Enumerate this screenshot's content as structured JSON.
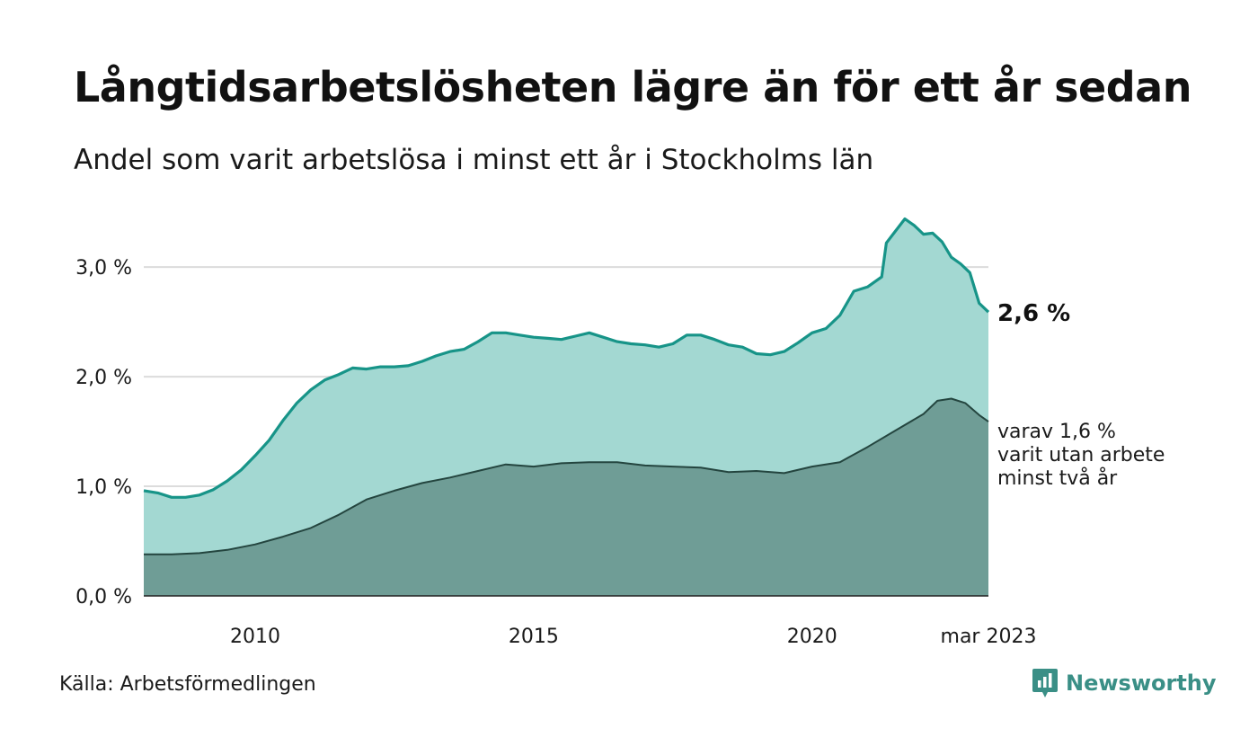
{
  "colors": {
    "total_fill": "#a3d8d2",
    "total_line": "#179488",
    "long_fill": "#6f9d96",
    "long_line": "#24453f",
    "grid": "#dcdcdc",
    "brand": "#3a8f86"
  },
  "source": "Källa: Arbetsförmedlingen",
  "brand": {
    "name": "Newsworthy",
    "icon": "bar-chart-icon"
  },
  "chart_data": {
    "type": "area",
    "title": "Långtidsarbetslösheten lägre än för ett år sedan",
    "subtitle": "Andel som varit arbetslösa i minst ett år i Stockholms län",
    "xlabel": "",
    "ylabel": "",
    "ylim": [
      0,
      3.6
    ],
    "xlim": [
      "2008-01",
      "2023-03"
    ],
    "grid": true,
    "yticks": [
      {
        "value": 0,
        "label": "0,0 %"
      },
      {
        "value": 1,
        "label": "1,0 %"
      },
      {
        "value": 2,
        "label": "2,0 %"
      },
      {
        "value": 3,
        "label": "3,0 %"
      }
    ],
    "xticks": [
      {
        "x": "2010-01",
        "label": "2010"
      },
      {
        "x": "2015-01",
        "label": "2015"
      },
      {
        "x": "2020-01",
        "label": "2020"
      },
      {
        "x": "2023-03",
        "label": "mar 2023"
      }
    ],
    "annotations": {
      "total_end": "2,6 %",
      "long_end": [
        "varav 1,6 %",
        "varit utan arbete",
        "minst två år"
      ]
    },
    "series": [
      {
        "key": "total",
        "points": [
          [
            "2008-01",
            0.96
          ],
          [
            "2008-04",
            0.94
          ],
          [
            "2008-07",
            0.9
          ],
          [
            "2008-10",
            0.9
          ],
          [
            "2009-01",
            0.92
          ],
          [
            "2009-04",
            0.97
          ],
          [
            "2009-07",
            1.05
          ],
          [
            "2009-10",
            1.15
          ],
          [
            "2010-01",
            1.28
          ],
          [
            "2010-04",
            1.42
          ],
          [
            "2010-07",
            1.6
          ],
          [
            "2010-10",
            1.76
          ],
          [
            "2011-01",
            1.88
          ],
          [
            "2011-04",
            1.97
          ],
          [
            "2011-07",
            2.02
          ],
          [
            "2011-10",
            2.08
          ],
          [
            "2012-01",
            2.07
          ],
          [
            "2012-04",
            2.09
          ],
          [
            "2012-07",
            2.09
          ],
          [
            "2012-10",
            2.1
          ],
          [
            "2013-01",
            2.14
          ],
          [
            "2013-04",
            2.19
          ],
          [
            "2013-07",
            2.23
          ],
          [
            "2013-10",
            2.25
          ],
          [
            "2014-01",
            2.32
          ],
          [
            "2014-04",
            2.4
          ],
          [
            "2014-07",
            2.4
          ],
          [
            "2014-10",
            2.38
          ],
          [
            "2015-01",
            2.36
          ],
          [
            "2015-04",
            2.35
          ],
          [
            "2015-07",
            2.34
          ],
          [
            "2015-10",
            2.37
          ],
          [
            "2016-01",
            2.4
          ],
          [
            "2016-04",
            2.36
          ],
          [
            "2016-07",
            2.32
          ],
          [
            "2016-10",
            2.3
          ],
          [
            "2017-01",
            2.29
          ],
          [
            "2017-04",
            2.27
          ],
          [
            "2017-07",
            2.3
          ],
          [
            "2017-10",
            2.38
          ],
          [
            "2018-01",
            2.38
          ],
          [
            "2018-04",
            2.34
          ],
          [
            "2018-07",
            2.29
          ],
          [
            "2018-10",
            2.27
          ],
          [
            "2019-01",
            2.21
          ],
          [
            "2019-04",
            2.2
          ],
          [
            "2019-07",
            2.23
          ],
          [
            "2019-10",
            2.31
          ],
          [
            "2020-01",
            2.4
          ],
          [
            "2020-04",
            2.44
          ],
          [
            "2020-07",
            2.56
          ],
          [
            "2020-10",
            2.78
          ],
          [
            "2021-01",
            2.82
          ],
          [
            "2021-04",
            2.91
          ],
          [
            "2021-05",
            3.22
          ],
          [
            "2021-07",
            3.33
          ],
          [
            "2021-09",
            3.44
          ],
          [
            "2021-11",
            3.38
          ],
          [
            "2022-01",
            3.3
          ],
          [
            "2022-03",
            3.31
          ],
          [
            "2022-05",
            3.23
          ],
          [
            "2022-07",
            3.09
          ],
          [
            "2022-09",
            3.03
          ],
          [
            "2022-11",
            2.95
          ],
          [
            "2023-01",
            2.67
          ],
          [
            "2023-03",
            2.59
          ]
        ]
      },
      {
        "key": "long",
        "points": [
          [
            "2008-01",
            0.38
          ],
          [
            "2008-07",
            0.38
          ],
          [
            "2009-01",
            0.39
          ],
          [
            "2009-07",
            0.42
          ],
          [
            "2010-01",
            0.47
          ],
          [
            "2010-07",
            0.54
          ],
          [
            "2011-01",
            0.62
          ],
          [
            "2011-07",
            0.74
          ],
          [
            "2012-01",
            0.88
          ],
          [
            "2012-07",
            0.96
          ],
          [
            "2013-01",
            1.03
          ],
          [
            "2013-07",
            1.08
          ],
          [
            "2014-01",
            1.14
          ],
          [
            "2014-07",
            1.2
          ],
          [
            "2015-01",
            1.18
          ],
          [
            "2015-07",
            1.21
          ],
          [
            "2016-01",
            1.22
          ],
          [
            "2016-07",
            1.22
          ],
          [
            "2017-01",
            1.19
          ],
          [
            "2017-07",
            1.18
          ],
          [
            "2018-01",
            1.17
          ],
          [
            "2018-07",
            1.13
          ],
          [
            "2019-01",
            1.14
          ],
          [
            "2019-07",
            1.12
          ],
          [
            "2020-01",
            1.18
          ],
          [
            "2020-07",
            1.22
          ],
          [
            "2021-01",
            1.36
          ],
          [
            "2021-07",
            1.51
          ],
          [
            "2022-01",
            1.66
          ],
          [
            "2022-04",
            1.78
          ],
          [
            "2022-07",
            1.8
          ],
          [
            "2022-10",
            1.76
          ],
          [
            "2023-01",
            1.65
          ],
          [
            "2023-03",
            1.59
          ]
        ]
      }
    ]
  }
}
